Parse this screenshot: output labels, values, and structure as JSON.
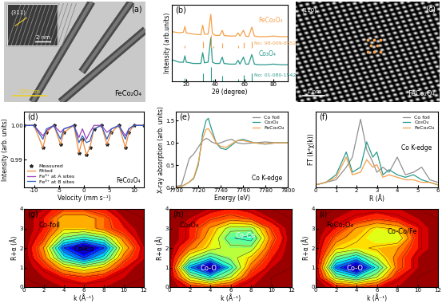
{
  "chart_data": [
    {
      "type": "image",
      "label": "(a)",
      "annotations": [
        "(311)",
        "2 nm",
        "200 nm",
        "FeCo₂O₄"
      ]
    },
    {
      "type": "line",
      "label": "(b)",
      "x_label": "2θ (degree)",
      "y_label": "Intensity (arb.units)",
      "xlim": [
        10,
        90
      ],
      "xticks": [
        20,
        40,
        60,
        80
      ],
      "ylim": [
        0,
        1.2
      ],
      "tick_labels": "x",
      "x": [
        10,
        15,
        18,
        19,
        20,
        25,
        30,
        31.3,
        32.5,
        35,
        36.9,
        38,
        40,
        43,
        44.8,
        46,
        50,
        54,
        55.7,
        57,
        59.4,
        61,
        63,
        65.2,
        67,
        70,
        75,
        80,
        85,
        90
      ],
      "series": [
        {
          "name": "FeCo₂O₄",
          "color": "#f5a04a",
          "values": [
            0.78,
            0.76,
            0.77,
            0.86,
            0.76,
            0.74,
            0.73,
            0.88,
            0.74,
            0.74,
            1.05,
            0.75,
            0.72,
            0.72,
            0.8,
            0.72,
            0.71,
            0.71,
            0.76,
            0.71,
            0.8,
            0.71,
            0.7,
            0.85,
            0.71,
            0.7,
            0.7,
            0.71,
            0.7,
            0.7
          ]
        },
        {
          "name": "Co₃O₄",
          "color": "#2a9a8e",
          "values": [
            0.34,
            0.3,
            0.3,
            0.4,
            0.3,
            0.28,
            0.28,
            0.45,
            0.29,
            0.3,
            0.68,
            0.3,
            0.28,
            0.28,
            0.38,
            0.28,
            0.27,
            0.27,
            0.33,
            0.27,
            0.38,
            0.27,
            0.27,
            0.42,
            0.27,
            0.26,
            0.26,
            0.27,
            0.26,
            0.26
          ]
        }
      ],
      "references": [
        {
          "name": "No: 98-009-8552",
          "color": "#f5a04a",
          "base": 0.52,
          "x": [
            19,
            31.3,
            36.9,
            38.6,
            44.8,
            55.7,
            59.4,
            65.2
          ],
          "heights": [
            0.04,
            0.1,
            0.2,
            0.03,
            0.08,
            0.04,
            0.09,
            0.1
          ]
        },
        {
          "name": "No: 01-080-1542",
          "color": "#2a9a8e",
          "base": 0,
          "x": [
            19,
            31.3,
            36.8,
            38.5,
            44.8,
            55.7,
            59.4,
            65.2
          ],
          "heights": [
            0.05,
            0.12,
            0.22,
            0.03,
            0.09,
            0.04,
            0.1,
            0.12
          ]
        }
      ]
    },
    {
      "type": "image",
      "label": "(c)",
      "annotations": [
        "(110)",
        "1 nm",
        "FeCo₂O₄"
      ]
    },
    {
      "type": "line",
      "label": "(d)",
      "x_label": "Velocity (mm s⁻¹)",
      "y_label": "Intensity (arb. units)",
      "annotations": [
        "FeCo₂O₄"
      ],
      "legend": "lower left",
      "xlim": [
        -12,
        12
      ],
      "xticks": [
        -10,
        -5,
        0,
        5,
        10
      ],
      "ylim": [
        0.982,
        1.004
      ],
      "yticks": [
        {
          "value": 0.99,
          "label": "0.99"
        },
        {
          "value": 1.0,
          "label": "1.00"
        }
      ],
      "x": [
        -12,
        -10,
        -8.2,
        -7.5,
        -6,
        -4.7,
        -4,
        -2,
        -1,
        -0.3,
        0.5,
        1.2,
        2,
        3.5,
        4.6,
        5.5,
        7,
        8.3,
        9,
        10,
        12
      ],
      "series": [
        {
          "name": "Measured",
          "type": "scatter",
          "marker": "star",
          "color": "#222222",
          "values": [
            1.0,
            1.0,
            0.9935,
            0.998,
            1.0,
            0.9945,
            0.998,
            1.0,
            0.992,
            0.996,
            0.9915,
            0.9935,
            0.999,
            1.0,
            0.9945,
            0.998,
            1.0,
            0.9935,
            0.998,
            1.0,
            1.0
          ]
        },
        {
          "name": "Fitted",
          "type": "line",
          "color": "#f08a3c",
          "values": [
            1.0,
            1.0,
            0.9935,
            0.998,
            1.0,
            0.9945,
            0.998,
            1.0,
            0.992,
            0.996,
            0.9915,
            0.9935,
            0.999,
            1.0,
            0.9945,
            0.998,
            1.0,
            0.9935,
            0.998,
            1.0,
            1.0
          ]
        },
        {
          "name": "Fe³⁺ at A sites",
          "type": "line",
          "color": "#9b3fb5",
          "values": [
            1.0,
            1.0,
            0.997,
            0.9985,
            1.0,
            0.998,
            0.999,
            1.0,
            0.9965,
            0.999,
            0.996,
            0.998,
            1.0,
            1.0,
            0.998,
            0.999,
            1.0,
            0.997,
            0.999,
            1.0,
            1.0
          ]
        },
        {
          "name": "Fe³⁺ at B sites",
          "type": "line",
          "color": "#3060c0",
          "values": [
            1.0,
            1.0,
            0.996,
            0.999,
            1.0,
            0.996,
            0.999,
            1.0,
            0.995,
            0.997,
            0.995,
            0.9955,
            0.999,
            1.0,
            0.996,
            0.999,
            1.0,
            0.996,
            0.999,
            1.0,
            1.0
          ]
        }
      ]
    },
    {
      "type": "line",
      "label": "(e)",
      "x_label": "Energy (eV)",
      "y_label": "X-ray absorption (arb. units)",
      "annotations": [
        "Co K-edge"
      ],
      "legend": "upper right",
      "xlim": [
        7700,
        7800
      ],
      "xticks": [
        7700,
        7720,
        7740,
        7760,
        7780,
        7800
      ],
      "ylim": [
        0,
        1.7
      ],
      "yticks": [
        0.0,
        0.5,
        1.0,
        1.5
      ],
      "x": [
        7700,
        7705,
        7708,
        7712,
        7716,
        7720,
        7724,
        7727,
        7729,
        7732,
        7736,
        7740,
        7745,
        7750,
        7755,
        7760,
        7770,
        7780,
        7790,
        7800
      ],
      "series": [
        {
          "name": "Co foil",
          "color": "#909090",
          "values": [
            0.02,
            0.05,
            0.3,
            0.65,
            0.75,
            0.9,
            1.05,
            1.1,
            1.08,
            1.02,
            0.98,
            1.0,
            1.05,
            1.08,
            1.0,
            0.98,
            1.0,
            1.02,
            1.0,
            1.0
          ]
        },
        {
          "name": "Co₃O₄",
          "color": "#2a9a8e",
          "values": [
            0.0,
            0.02,
            0.06,
            0.12,
            0.2,
            0.5,
            1.2,
            1.5,
            1.55,
            1.3,
            1.0,
            0.88,
            0.85,
            0.95,
            1.05,
            1.08,
            1.0,
            0.97,
            1.0,
            1.0
          ]
        },
        {
          "name": "FeCo₂O₄",
          "color": "#f5a04a",
          "values": [
            0.0,
            0.02,
            0.06,
            0.12,
            0.22,
            0.55,
            1.1,
            1.3,
            1.32,
            1.2,
            1.0,
            0.92,
            0.9,
            0.98,
            1.05,
            1.05,
            1.0,
            0.98,
            1.0,
            1.0
          ]
        }
      ]
    },
    {
      "type": "line",
      "label": "(f)",
      "x_label": "R (Å)",
      "y_label": "FT (k²χ(k))",
      "annotations": [
        "Co K-edge"
      ],
      "legend": "upper right",
      "tick_labels": "x",
      "xlim": [
        0,
        6
      ],
      "xticks": [
        0,
        1,
        2,
        3,
        4,
        5,
        6
      ],
      "ylim": [
        0,
        30
      ],
      "x": [
        0,
        0.5,
        1.0,
        1.5,
        1.8,
        2.2,
        2.5,
        2.8,
        3.0,
        3.3,
        3.6,
        4.0,
        4.4,
        4.8,
        5.2,
        5.6,
        6.0
      ],
      "series": [
        {
          "name": "Co foil",
          "color": "#909090",
          "values": [
            1,
            2,
            3,
            8,
            12,
            27,
            15,
            10,
            6,
            8,
            6,
            12,
            5,
            6,
            8,
            3,
            2
          ]
        },
        {
          "name": "Co₃O₄",
          "color": "#2a9a8e",
          "values": [
            1,
            2,
            5,
            14,
            6,
            8,
            18,
            12,
            14,
            5,
            7,
            5,
            4,
            5,
            3,
            2,
            1
          ]
        },
        {
          "name": "FeCo₂O₄",
          "color": "#f5a04a",
          "values": [
            1,
            2,
            4,
            12,
            5,
            6,
            11,
            8,
            9,
            4,
            5,
            4,
            3,
            3,
            2,
            2,
            1
          ]
        }
      ]
    },
    {
      "type": "contour",
      "label": "(g)",
      "x_label": "k (Å⁻¹)",
      "y_label": "R+α (Å)",
      "annotations": [
        "Co-foil",
        "Co-Co"
      ],
      "xlim": [
        0,
        12
      ],
      "xticks": [
        0,
        2,
        4,
        6,
        8,
        10,
        12
      ],
      "ylim": [
        0,
        4
      ],
      "yticks": [
        0,
        1,
        2,
        3,
        4
      ],
      "k": [
        0,
        2,
        4,
        6,
        8,
        10,
        12
      ],
      "r": [
        0,
        0.5,
        1,
        1.5,
        2,
        2.5,
        3,
        3.5,
        4
      ],
      "z": [
        [
          0,
          0,
          0.05,
          0.05,
          0.05,
          0,
          0
        ],
        [
          0,
          0.05,
          0.1,
          0.15,
          0.1,
          0.05,
          0
        ],
        [
          0,
          0.1,
          0.3,
          0.4,
          0.3,
          0.1,
          0
        ],
        [
          0,
          0.2,
          0.6,
          0.8,
          0.6,
          0.2,
          0.05
        ],
        [
          0,
          0.25,
          0.8,
          1.0,
          0.8,
          0.3,
          0.05
        ],
        [
          0,
          0.15,
          0.5,
          0.6,
          0.5,
          0.2,
          0
        ],
        [
          0,
          0.1,
          0.3,
          0.3,
          0.2,
          0.1,
          0
        ],
        [
          0,
          0.1,
          0.3,
          0.3,
          0.2,
          0.05,
          0
        ],
        [
          0,
          0.05,
          0.15,
          0.15,
          0.1,
          0,
          0
        ]
      ]
    },
    {
      "type": "contour",
      "label": "(h)",
      "x_label": "k (Å⁻¹)",
      "y_label": "R+α (Å)",
      "annotations": [
        "Co₃O₄",
        "Co-O",
        "Co-Co"
      ],
      "xlim": [
        0,
        12
      ],
      "xticks": [
        0,
        2,
        4,
        6,
        8,
        10,
        12
      ],
      "ylim": [
        0,
        4
      ],
      "yticks": [
        0,
        1,
        2,
        3,
        4
      ],
      "k": [
        0,
        2,
        4,
        6,
        8,
        10,
        12
      ],
      "r": [
        0,
        0.5,
        1,
        1.5,
        2,
        2.5,
        3,
        3.5,
        4
      ],
      "z": [
        [
          0,
          0.1,
          0.15,
          0.1,
          0.05,
          0,
          0
        ],
        [
          0,
          0.4,
          0.6,
          0.4,
          0.1,
          0,
          0
        ],
        [
          0,
          0.7,
          1.0,
          0.6,
          0.2,
          0.05,
          0
        ],
        [
          0,
          0.4,
          0.6,
          0.45,
          0.3,
          0.1,
          0
        ],
        [
          0,
          0.2,
          0.35,
          0.45,
          0.45,
          0.15,
          0
        ],
        [
          0,
          0.1,
          0.3,
          0.55,
          0.6,
          0.2,
          0
        ],
        [
          0,
          0.1,
          0.25,
          0.45,
          0.45,
          0.15,
          0
        ],
        [
          0,
          0.05,
          0.15,
          0.2,
          0.15,
          0.05,
          0
        ],
        [
          0,
          0,
          0.05,
          0.1,
          0.05,
          0,
          0
        ]
      ]
    },
    {
      "type": "contour",
      "label": "(i)",
      "x_label": "k (Å⁻¹)",
      "y_label": "R+α (Å)",
      "annotations": [
        "FeCo₂O₄",
        "Co-O",
        "Co-Co/Fe"
      ],
      "xlim": [
        0,
        12
      ],
      "xticks": [
        0,
        2,
        4,
        6,
        8,
        10,
        12
      ],
      "ylim": [
        0,
        4
      ],
      "yticks": [
        0,
        1,
        2,
        3,
        4
      ],
      "k": [
        0,
        2,
        4,
        6,
        8,
        10,
        12
      ],
      "r": [
        0,
        0.5,
        1,
        1.5,
        2,
        2.5,
        3,
        3.5,
        4
      ],
      "z": [
        [
          0,
          0.1,
          0.15,
          0.1,
          0.05,
          0,
          0
        ],
        [
          0,
          0.45,
          0.6,
          0.4,
          0.1,
          0,
          0
        ],
        [
          0,
          0.75,
          1.0,
          0.6,
          0.2,
          0.05,
          0
        ],
        [
          0,
          0.5,
          0.65,
          0.4,
          0.2,
          0.05,
          0
        ],
        [
          0,
          0.3,
          0.35,
          0.3,
          0.25,
          0.1,
          0
        ],
        [
          0,
          0.2,
          0.3,
          0.4,
          0.4,
          0.1,
          0
        ],
        [
          0,
          0.1,
          0.25,
          0.35,
          0.3,
          0.1,
          0
        ],
        [
          0,
          0.05,
          0.1,
          0.15,
          0.1,
          0.05,
          0
        ],
        [
          0,
          0,
          0.05,
          0.05,
          0.05,
          0,
          0
        ]
      ]
    }
  ]
}
